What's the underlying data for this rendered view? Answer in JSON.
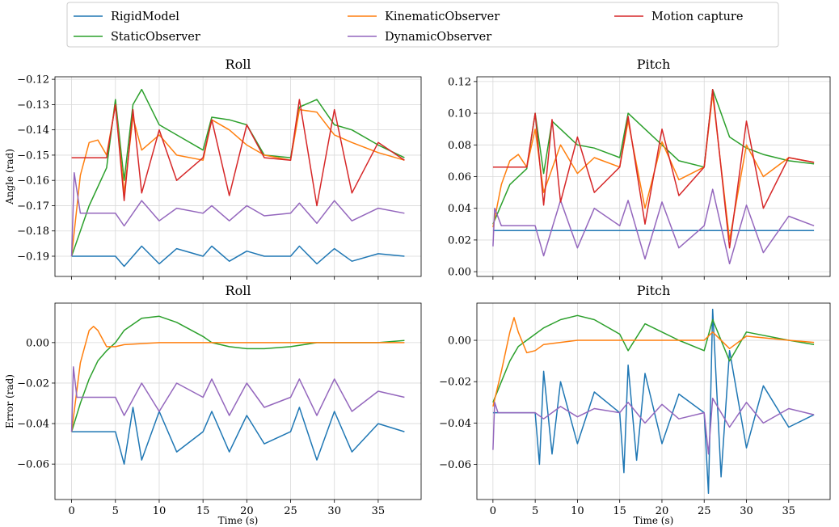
{
  "legend": {
    "entries": [
      {
        "label": "RigidModel",
        "color": "#1f77b4"
      },
      {
        "label": "StaticObserver",
        "color": "#2ca02c"
      },
      {
        "label": "KinematicObserver",
        "color": "#ff7f0e"
      },
      {
        "label": "DynamicObserver",
        "color": "#9467bd"
      },
      {
        "label": "Motion capture",
        "color": "#d62728"
      }
    ]
  },
  "chart_data": [
    {
      "type": "line",
      "title": "Roll",
      "ylabel": "Angle (rad)",
      "xlabel": "",
      "xlim": [
        -1.9,
        39.9
      ],
      "ylim": [
        -0.198,
        -0.119
      ],
      "xticks": [
        0,
        5,
        10,
        15,
        20,
        25,
        30,
        35
      ],
      "show_xticklabels": false,
      "yticks": [
        -0.19,
        -0.18,
        -0.17,
        -0.16,
        -0.15,
        -0.14,
        -0.13,
        -0.12
      ],
      "yticklabels": [
        "−0.19",
        "−0.18",
        "−0.17",
        "−0.16",
        "−0.15",
        "−0.14",
        "−0.13",
        "−0.12"
      ],
      "grid": true,
      "series": [
        {
          "name": "RigidModel",
          "x": [
            0,
            5,
            6,
            8,
            10,
            12,
            15,
            16,
            18,
            20,
            22,
            25,
            26,
            28,
            30,
            32,
            35,
            38
          ],
          "y": [
            -0.19,
            -0.19,
            -0.194,
            -0.186,
            -0.193,
            -0.187,
            -0.19,
            -0.186,
            -0.192,
            -0.188,
            -0.19,
            -0.19,
            -0.186,
            -0.193,
            -0.187,
            -0.192,
            -0.189,
            -0.19
          ]
        },
        {
          "name": "StaticObserver",
          "x": [
            0,
            2,
            4,
            5,
            6,
            7,
            8,
            10,
            12,
            15,
            16,
            18,
            20,
            22,
            25,
            26,
            28,
            30,
            32,
            35,
            38
          ],
          "y": [
            -0.19,
            -0.17,
            -0.155,
            -0.128,
            -0.16,
            -0.13,
            -0.124,
            -0.138,
            -0.142,
            -0.148,
            -0.135,
            -0.136,
            -0.138,
            -0.15,
            -0.151,
            -0.131,
            -0.128,
            -0.138,
            -0.14,
            -0.146,
            -0.151
          ]
        },
        {
          "name": "KinematicObserver",
          "x": [
            0,
            1,
            2,
            3,
            4,
            5,
            6,
            7,
            8,
            10,
            12,
            15,
            16,
            18,
            20,
            22,
            25,
            26,
            28,
            30,
            32,
            35,
            38
          ],
          "y": [
            -0.19,
            -0.158,
            -0.145,
            -0.144,
            -0.15,
            -0.13,
            -0.165,
            -0.135,
            -0.148,
            -0.142,
            -0.15,
            -0.152,
            -0.136,
            -0.14,
            -0.146,
            -0.15,
            -0.152,
            -0.132,
            -0.133,
            -0.142,
            -0.145,
            -0.149,
            -0.152
          ]
        },
        {
          "name": "DynamicObserver",
          "x": [
            0,
            0.3,
            1,
            3,
            5,
            6,
            8,
            10,
            12,
            15,
            16,
            18,
            20,
            22,
            25,
            26,
            28,
            30,
            32,
            35,
            38
          ],
          "y": [
            -0.19,
            -0.157,
            -0.173,
            -0.173,
            -0.173,
            -0.178,
            -0.168,
            -0.176,
            -0.171,
            -0.173,
            -0.17,
            -0.176,
            -0.17,
            -0.174,
            -0.173,
            -0.169,
            -0.177,
            -0.168,
            -0.176,
            -0.171,
            -0.173
          ]
        },
        {
          "name": "Motion capture",
          "x": [
            0,
            2,
            4,
            5,
            6,
            7,
            8,
            10,
            12,
            15,
            16,
            18,
            20,
            22,
            25,
            26,
            28,
            30,
            32,
            35,
            38
          ],
          "y": [
            -0.151,
            -0.151,
            -0.151,
            -0.13,
            -0.168,
            -0.132,
            -0.165,
            -0.14,
            -0.16,
            -0.151,
            -0.136,
            -0.166,
            -0.138,
            -0.151,
            -0.152,
            -0.128,
            -0.17,
            -0.132,
            -0.165,
            -0.145,
            -0.152
          ]
        }
      ]
    },
    {
      "type": "line",
      "title": "Pitch",
      "ylabel": "",
      "xlabel": "",
      "xlim": [
        -1.9,
        39.9
      ],
      "ylim": [
        -0.003,
        0.123
      ],
      "xticks": [
        0,
        5,
        10,
        15,
        20,
        25,
        30,
        35
      ],
      "show_xticklabels": false,
      "yticks": [
        0.0,
        0.02,
        0.04,
        0.06,
        0.08,
        0.1,
        0.12
      ],
      "yticklabels": [
        "0.00",
        "0.02",
        "0.04",
        "0.06",
        "0.08",
        "0.10",
        "0.12"
      ],
      "grid": true,
      "series": [
        {
          "name": "RigidModel",
          "x": [
            0,
            5,
            15,
            16,
            25,
            38
          ],
          "y": [
            0.026,
            0.026,
            0.026,
            0.026,
            0.026,
            0.026
          ]
        },
        {
          "name": "StaticObserver",
          "x": [
            0,
            2,
            4,
            5,
            6,
            7,
            8,
            10,
            12,
            15,
            16,
            18,
            20,
            22,
            25,
            26,
            28,
            30,
            32,
            35,
            38
          ],
          "y": [
            0.03,
            0.055,
            0.065,
            0.1,
            0.062,
            0.095,
            0.09,
            0.08,
            0.078,
            0.072,
            0.1,
            0.09,
            0.08,
            0.07,
            0.066,
            0.115,
            0.085,
            0.078,
            0.074,
            0.07,
            0.068
          ]
        },
        {
          "name": "KinematicObserver",
          "x": [
            0,
            1,
            2,
            3,
            4,
            5,
            6,
            8,
            10,
            12,
            15,
            16,
            18,
            20,
            22,
            25,
            26,
            28,
            30,
            32,
            35,
            38
          ],
          "y": [
            0.028,
            0.055,
            0.07,
            0.074,
            0.066,
            0.09,
            0.05,
            0.08,
            0.062,
            0.072,
            0.066,
            0.095,
            0.04,
            0.082,
            0.058,
            0.066,
            0.112,
            0.02,
            0.08,
            0.06,
            0.072,
            0.069
          ]
        },
        {
          "name": "DynamicObserver",
          "x": [
            0,
            0.2,
            1,
            3,
            5,
            6,
            8,
            10,
            12,
            15,
            16,
            18,
            20,
            22,
            25,
            26,
            28,
            30,
            32,
            35,
            38
          ],
          "y": [
            0.016,
            0.04,
            0.029,
            0.029,
            0.029,
            0.01,
            0.045,
            0.015,
            0.04,
            0.029,
            0.045,
            0.008,
            0.044,
            0.015,
            0.029,
            0.052,
            0.005,
            0.042,
            0.012,
            0.035,
            0.029
          ]
        },
        {
          "name": "Motion capture",
          "x": [
            0,
            2,
            4,
            5,
            6,
            7,
            8,
            10,
            12,
            15,
            16,
            18,
            20,
            22,
            25,
            26,
            28,
            30,
            32,
            35,
            38
          ],
          "y": [
            0.066,
            0.066,
            0.066,
            0.1,
            0.042,
            0.096,
            0.044,
            0.085,
            0.05,
            0.066,
            0.098,
            0.03,
            0.09,
            0.048,
            0.066,
            0.115,
            0.015,
            0.095,
            0.04,
            0.072,
            0.069
          ]
        }
      ]
    },
    {
      "type": "line",
      "title": "Roll",
      "ylabel": "Error (rad)",
      "xlabel": "Time (s)",
      "xlim": [
        -1.9,
        39.9
      ],
      "ylim": [
        -0.0775,
        0.0195
      ],
      "xticks": [
        0,
        5,
        10,
        15,
        20,
        25,
        30,
        35
      ],
      "show_xticklabels": true,
      "yticks": [
        -0.06,
        -0.04,
        -0.02,
        0.0
      ],
      "yticklabels": [
        "−0.06",
        "−0.04",
        "−0.02",
        "0.00"
      ],
      "grid": true,
      "series": [
        {
          "name": "RigidModel",
          "x": [
            0,
            5,
            6,
            7,
            8,
            10,
            12,
            15,
            16,
            18,
            20,
            22,
            25,
            26,
            28,
            30,
            32,
            35,
            38
          ],
          "y": [
            -0.044,
            -0.044,
            -0.06,
            -0.032,
            -0.058,
            -0.034,
            -0.054,
            -0.044,
            -0.034,
            -0.054,
            -0.036,
            -0.05,
            -0.044,
            -0.032,
            -0.058,
            -0.034,
            -0.054,
            -0.04,
            -0.044
          ]
        },
        {
          "name": "StaticObserver",
          "x": [
            0,
            1,
            2,
            3,
            4,
            5,
            6,
            8,
            10,
            12,
            15,
            16,
            18,
            20,
            22,
            25,
            28,
            30,
            35,
            38
          ],
          "y": [
            -0.044,
            -0.03,
            -0.018,
            -0.009,
            -0.004,
            0.0,
            0.006,
            0.012,
            0.013,
            0.01,
            0.003,
            0.0,
            -0.002,
            -0.003,
            -0.003,
            -0.002,
            0.0,
            0.0,
            0.0,
            0.001
          ]
        },
        {
          "name": "KinematicObserver",
          "x": [
            0,
            1,
            2,
            2.5,
            3,
            4,
            5,
            6,
            10,
            15,
            20,
            25,
            30,
            35,
            38
          ],
          "y": [
            -0.044,
            -0.01,
            0.006,
            0.008,
            0.006,
            -0.002,
            -0.002,
            -0.001,
            0.0,
            0.0,
            0.0,
            0.0,
            0.0,
            0.0,
            0.0
          ]
        },
        {
          "name": "DynamicObserver",
          "x": [
            0,
            0.2,
            0.6,
            1,
            3,
            5,
            6,
            8,
            10,
            12,
            15,
            16,
            18,
            20,
            22,
            25,
            26,
            28,
            30,
            32,
            35,
            38
          ],
          "y": [
            -0.044,
            -0.012,
            -0.027,
            -0.027,
            -0.027,
            -0.027,
            -0.036,
            -0.02,
            -0.034,
            -0.02,
            -0.027,
            -0.018,
            -0.036,
            -0.02,
            -0.032,
            -0.027,
            -0.018,
            -0.036,
            -0.018,
            -0.034,
            -0.024,
            -0.027
          ]
        }
      ]
    },
    {
      "type": "line",
      "title": "Pitch",
      "ylabel": "",
      "xlabel": "Time (s)",
      "xlim": [
        -1.9,
        39.9
      ],
      "ylim": [
        -0.077,
        0.018
      ],
      "xticks": [
        0,
        5,
        10,
        15,
        20,
        25,
        30,
        35
      ],
      "show_xticklabels": true,
      "yticks": [
        -0.06,
        -0.04,
        -0.02,
        0.0
      ],
      "yticklabels": [
        "−0.06",
        "−0.04",
        "−0.02",
        "0.00"
      ],
      "grid": true,
      "series": [
        {
          "name": "RigidModel",
          "x": [
            0,
            5,
            5.5,
            6,
            7,
            8,
            10,
            12,
            15,
            15.5,
            16,
            17,
            18,
            20,
            22,
            25,
            25.5,
            26,
            27,
            28,
            30,
            32,
            35,
            38
          ],
          "y": [
            -0.035,
            -0.035,
            -0.06,
            -0.015,
            -0.055,
            -0.02,
            -0.05,
            -0.025,
            -0.035,
            -0.064,
            -0.012,
            -0.058,
            -0.016,
            -0.05,
            -0.026,
            -0.035,
            -0.074,
            0.015,
            -0.066,
            -0.005,
            -0.052,
            -0.022,
            -0.042,
            -0.036
          ]
        },
        {
          "name": "StaticObserver",
          "x": [
            0,
            1,
            2,
            3,
            4,
            5,
            6,
            8,
            10,
            12,
            15,
            16,
            18,
            20,
            22,
            25,
            26,
            28,
            30,
            35,
            38
          ],
          "y": [
            -0.03,
            -0.02,
            -0.01,
            -0.003,
            0.0,
            0.003,
            0.006,
            0.01,
            0.012,
            0.01,
            0.003,
            -0.005,
            0.008,
            0.004,
            0.0,
            -0.005,
            0.01,
            -0.01,
            0.004,
            0.0,
            -0.002
          ]
        },
        {
          "name": "KinematicObserver",
          "x": [
            0,
            1,
            2,
            2.5,
            3,
            4,
            5,
            6,
            10,
            15,
            20,
            25,
            26,
            28,
            30,
            35,
            38
          ],
          "y": [
            -0.032,
            -0.015,
            0.004,
            0.011,
            0.004,
            -0.006,
            -0.005,
            -0.002,
            0.0,
            0.0,
            0.0,
            0.0,
            0.004,
            -0.004,
            0.002,
            0.0,
            -0.001
          ]
        },
        {
          "name": "DynamicObserver",
          "x": [
            0,
            0.2,
            0.6,
            1,
            3,
            5,
            6,
            8,
            10,
            12,
            15,
            16,
            18,
            20,
            22,
            25,
            25.5,
            26,
            28,
            30,
            32,
            35,
            38
          ],
          "y": [
            -0.053,
            -0.03,
            -0.035,
            -0.035,
            -0.035,
            -0.035,
            -0.038,
            -0.032,
            -0.037,
            -0.033,
            -0.035,
            -0.03,
            -0.04,
            -0.031,
            -0.038,
            -0.035,
            -0.055,
            -0.028,
            -0.042,
            -0.03,
            -0.04,
            -0.033,
            -0.036
          ]
        }
      ]
    }
  ]
}
